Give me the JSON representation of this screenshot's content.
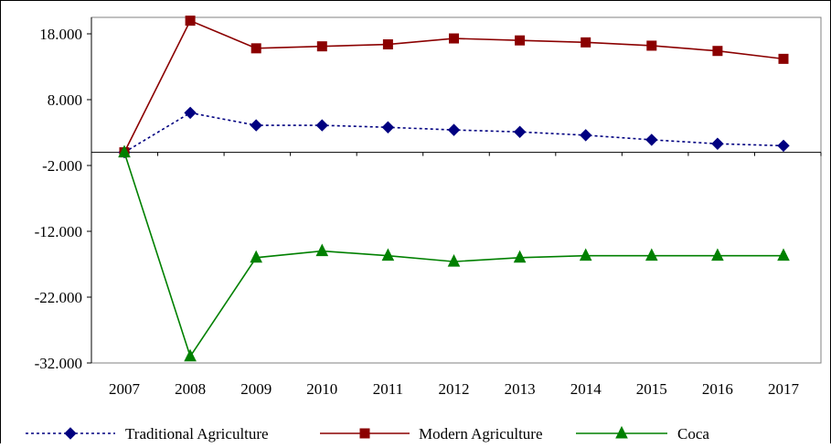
{
  "chart_data": {
    "type": "line",
    "categories": [
      "2007",
      "2008",
      "2009",
      "2010",
      "2011",
      "2012",
      "2013",
      "2014",
      "2015",
      "2016",
      "2017"
    ],
    "y_ticks": [
      18000,
      8000,
      -2000,
      -12000,
      -22000,
      -32000
    ],
    "y_tick_labels": [
      "18.000",
      "8.000",
      "-2.000",
      "-12.000",
      "-22.000",
      "-32.000"
    ],
    "ylim": [
      -32000,
      20500
    ],
    "grid": false,
    "legend_position": "bottom",
    "series": [
      {
        "name": "Traditional Agriculture",
        "color": "#000080",
        "line_style": "dotted",
        "marker": "diamond",
        "values": [
          0,
          6000,
          4100,
          4100,
          3800,
          3400,
          3100,
          2600,
          1900,
          1300,
          1000
        ]
      },
      {
        "name": "Modern Agriculture",
        "color": "#8B0000",
        "line_style": "solid",
        "marker": "square",
        "values": [
          0,
          20000,
          15800,
          16100,
          16400,
          17300,
          17000,
          16700,
          16200,
          15400,
          14200
        ]
      },
      {
        "name": "Coca",
        "color": "#008000",
        "line_style": "solid",
        "marker": "triangle",
        "values": [
          0,
          -31000,
          -16000,
          -15000,
          -15700,
          -16600,
          -16000,
          -15700,
          -15700,
          -15700,
          -15700
        ]
      }
    ]
  }
}
